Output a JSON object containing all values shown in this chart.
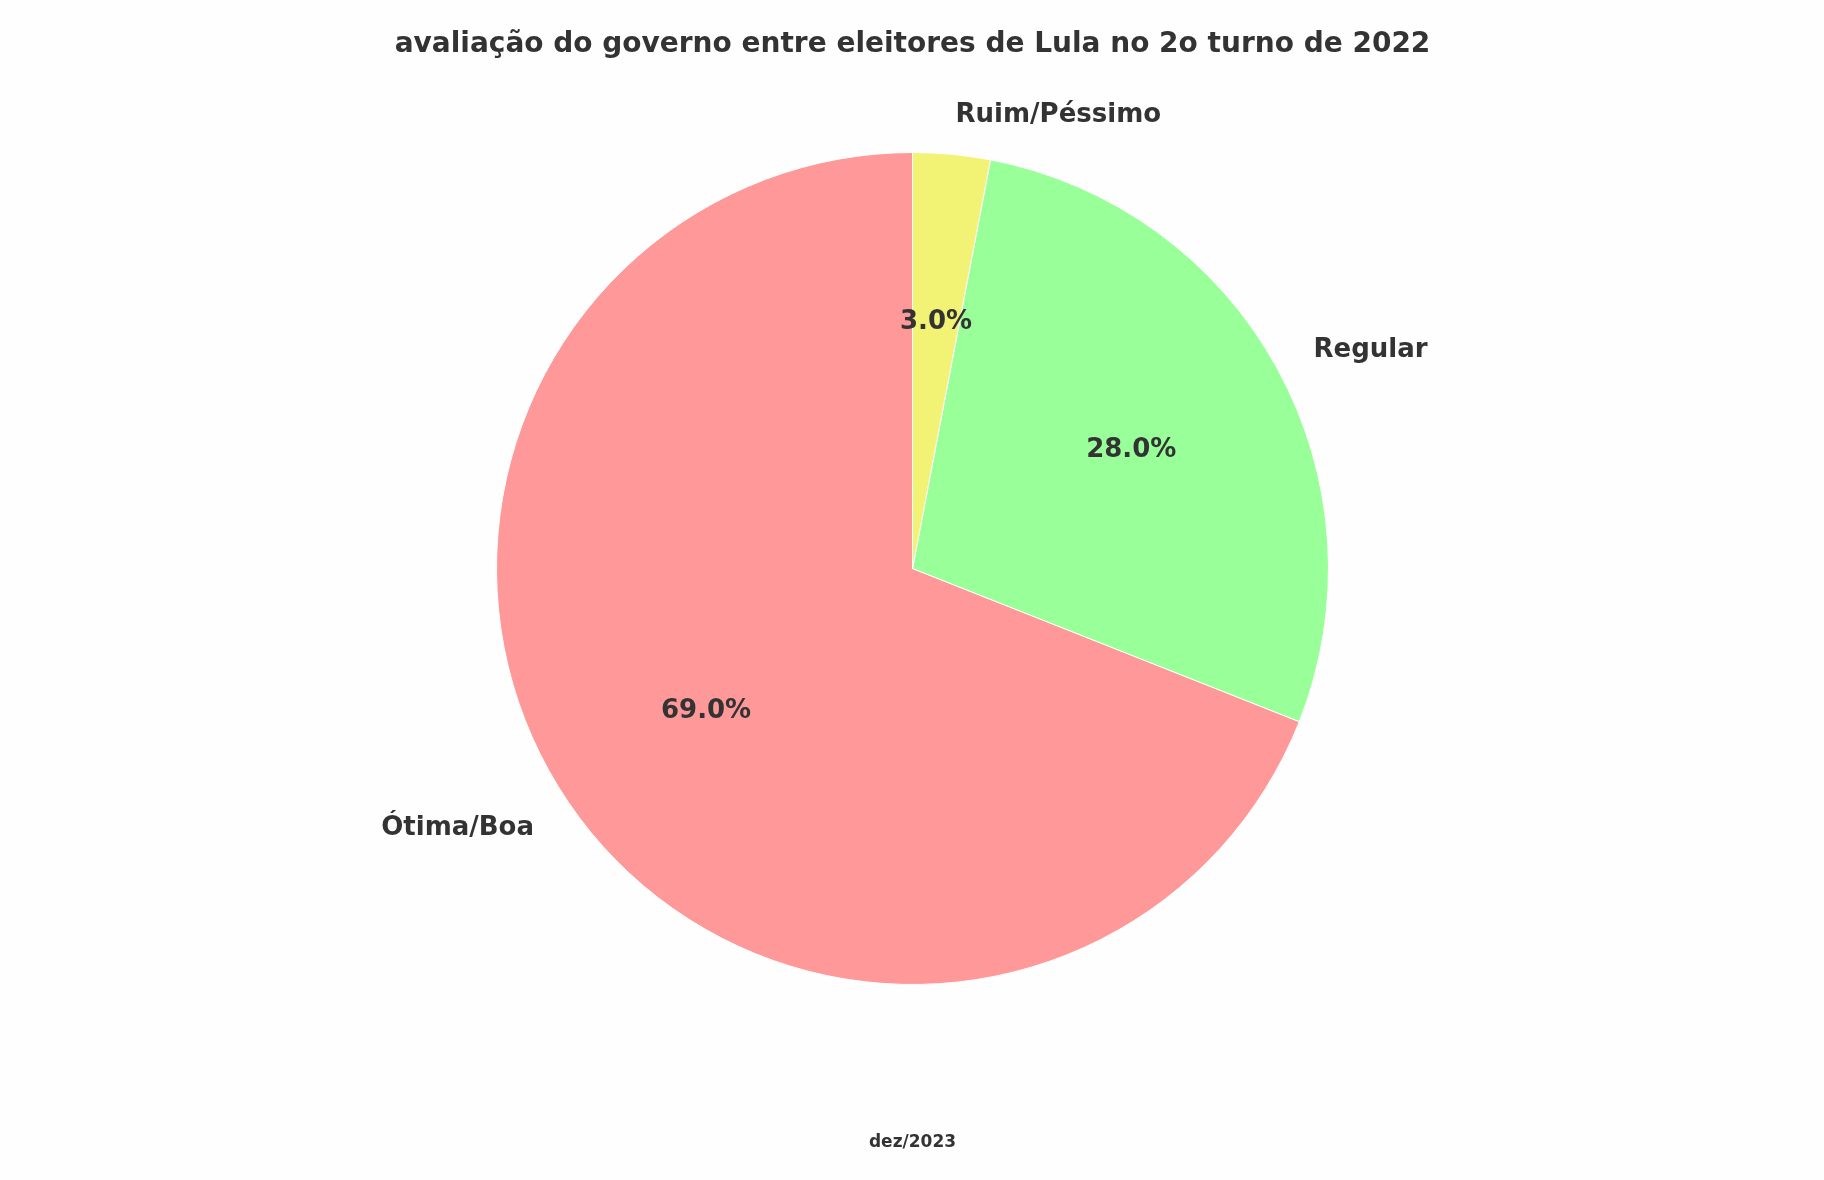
{
  "chart_data": {
    "type": "pie",
    "title": "avaliação do governo entre eleitores de Lula no 2o turno de 2022",
    "categories": [
      "Ótima/Boa",
      "Regular",
      "Ruim/Péssimo"
    ],
    "values": [
      69.0,
      28.0,
      3.0
    ],
    "colors": [
      "#ff9999",
      "#99ff99",
      "#f2f275"
    ],
    "value_labels": [
      "69.0%",
      "28.0%",
      "3.0%"
    ],
    "annotations": [
      "dez/2023"
    ]
  }
}
